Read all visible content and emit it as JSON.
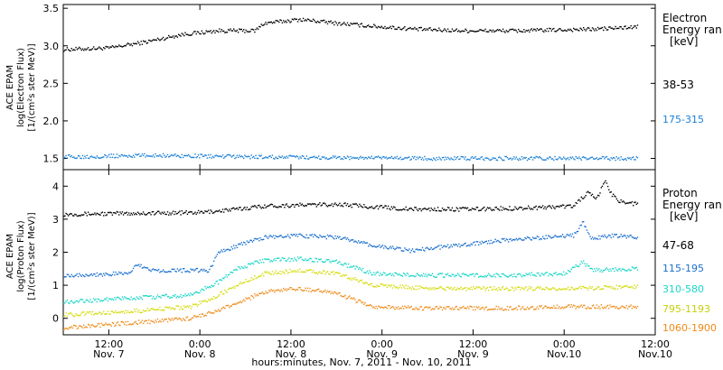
{
  "chart_data": [
    {
      "type": "scatter",
      "ylabel_lines": [
        "ACE EPAM",
        "log(Electron Flux)",
        "[1/(cm²s ster MeV)]"
      ],
      "ylim": [
        1.35,
        3.55
      ],
      "yticks": [
        "1.5",
        "2.0",
        "2.5",
        "3.0",
        "3.5"
      ],
      "legend_title_lines": [
        "Electron",
        "Energy ran",
        "[keV]"
      ],
      "legend_placement": "right",
      "series": [
        {
          "name": "38-53",
          "color": "#000000",
          "points": [
            [
              0.0,
              2.95
            ],
            [
              0.5,
              2.97
            ],
            [
              0.9,
              3.05
            ],
            [
              1.3,
              3.15
            ],
            [
              1.7,
              3.2
            ],
            [
              2.1,
              3.2
            ],
            [
              2.2,
              3.3
            ],
            [
              2.6,
              3.35
            ],
            [
              3.0,
              3.3
            ],
            [
              3.5,
              3.25
            ],
            [
              3.9,
              3.22
            ],
            [
              4.4,
              3.2
            ],
            [
              5.0,
              3.2
            ],
            [
              5.8,
              3.22
            ],
            [
              6.3,
              3.25
            ]
          ]
        },
        {
          "name": "175-315",
          "color": "#1a7fd6",
          "points": [
            [
              0.0,
              1.52
            ],
            [
              1.0,
              1.54
            ],
            [
              2.0,
              1.52
            ],
            [
              3.0,
              1.51
            ],
            [
              4.0,
              1.5
            ],
            [
              5.0,
              1.5
            ],
            [
              6.0,
              1.5
            ],
            [
              6.3,
              1.5
            ]
          ]
        }
      ]
    },
    {
      "type": "scatter",
      "ylabel_lines": [
        "ACE EPAM",
        "log(Proton Flux)",
        "[1/(cm²s ster MeV)]"
      ],
      "ylim": [
        -0.5,
        4.5
      ],
      "yticks": [
        "0",
        "1",
        "2",
        "3",
        "4"
      ],
      "legend_title_lines": [
        "Proton",
        "Energy ran",
        "[keV]"
      ],
      "legend_placement": "right",
      "series": [
        {
          "name": "47-68",
          "color": "#000000",
          "points": [
            [
              0.0,
              3.15
            ],
            [
              1.5,
              3.2
            ],
            [
              1.9,
              3.3
            ],
            [
              2.2,
              3.4
            ],
            [
              3.0,
              3.45
            ],
            [
              3.8,
              3.3
            ],
            [
              4.5,
              3.3
            ],
            [
              5.2,
              3.35
            ],
            [
              5.6,
              3.4
            ],
            [
              5.75,
              3.8
            ],
            [
              5.85,
              3.6
            ],
            [
              5.95,
              4.2
            ],
            [
              6.0,
              3.8
            ],
            [
              6.1,
              3.55
            ],
            [
              6.3,
              3.45
            ]
          ]
        },
        {
          "name": "115-195",
          "color": "#1a6fce",
          "points": [
            [
              0.0,
              1.3
            ],
            [
              0.7,
              1.35
            ],
            [
              0.8,
              1.6
            ],
            [
              1.0,
              1.45
            ],
            [
              1.6,
              1.45
            ],
            [
              1.7,
              2.0
            ],
            [
              1.9,
              2.2
            ],
            [
              2.2,
              2.45
            ],
            [
              2.6,
              2.5
            ],
            [
              3.0,
              2.45
            ],
            [
              3.4,
              2.2
            ],
            [
              3.8,
              2.05
            ],
            [
              4.3,
              2.2
            ],
            [
              4.8,
              2.35
            ],
            [
              5.3,
              2.45
            ],
            [
              5.6,
              2.5
            ],
            [
              5.7,
              2.9
            ],
            [
              5.8,
              2.4
            ],
            [
              6.0,
              2.5
            ],
            [
              6.3,
              2.45
            ]
          ]
        },
        {
          "name": "310-580",
          "color": "#19d6c8",
          "points": [
            [
              0.0,
              0.5
            ],
            [
              0.7,
              0.6
            ],
            [
              1.4,
              0.7
            ],
            [
              1.7,
              1.1
            ],
            [
              1.9,
              1.5
            ],
            [
              2.2,
              1.75
            ],
            [
              2.6,
              1.8
            ],
            [
              3.0,
              1.7
            ],
            [
              3.4,
              1.35
            ],
            [
              4.0,
              1.3
            ],
            [
              4.8,
              1.3
            ],
            [
              5.5,
              1.35
            ],
            [
              5.7,
              1.7
            ],
            [
              5.8,
              1.45
            ],
            [
              6.3,
              1.5
            ]
          ]
        },
        {
          "name": "795-1193",
          "color": "#d4dc0a",
          "points": [
            [
              0.0,
              0.1
            ],
            [
              0.7,
              0.2
            ],
            [
              1.4,
              0.35
            ],
            [
              1.7,
              0.7
            ],
            [
              1.9,
              1.0
            ],
            [
              2.2,
              1.35
            ],
            [
              2.6,
              1.45
            ],
            [
              3.0,
              1.35
            ],
            [
              3.4,
              1.0
            ],
            [
              4.0,
              0.9
            ],
            [
              4.8,
              0.9
            ],
            [
              5.5,
              0.9
            ],
            [
              6.3,
              0.95
            ]
          ]
        },
        {
          "name": "1060-1900",
          "color": "#ef8a17",
          "points": [
            [
              0.0,
              -0.3
            ],
            [
              0.7,
              -0.15
            ],
            [
              1.4,
              0.0
            ],
            [
              1.7,
              0.25
            ],
            [
              1.9,
              0.45
            ],
            [
              2.2,
              0.8
            ],
            [
              2.6,
              0.9
            ],
            [
              3.0,
              0.75
            ],
            [
              3.4,
              0.35
            ],
            [
              4.0,
              0.3
            ],
            [
              4.8,
              0.3
            ],
            [
              5.5,
              0.35
            ],
            [
              6.3,
              0.35
            ]
          ]
        }
      ]
    }
  ],
  "x_axis": {
    "range_days": [
      0.0,
      6.5
    ],
    "ticks": [
      {
        "t": 0.5,
        "time": "12:00",
        "date": "Nov. 7"
      },
      {
        "t": 1.5,
        "time": "0:00",
        "date": "Nov. 8"
      },
      {
        "t": 2.5,
        "time": "12:00",
        "date": "Nov. 8"
      },
      {
        "t": 3.5,
        "time": "0:00",
        "date": "Nov. 9"
      },
      {
        "t": 4.5,
        "time": "12:00",
        "date": "Nov. 9"
      },
      {
        "t": 5.5,
        "time": "0:00",
        "date": "Nov.10"
      },
      {
        "t": 6.5,
        "time": "12:00",
        "date": "Nov.10"
      }
    ],
    "title": "hours:minutes, Nov. 7, 2011 - Nov. 10, 2011"
  }
}
